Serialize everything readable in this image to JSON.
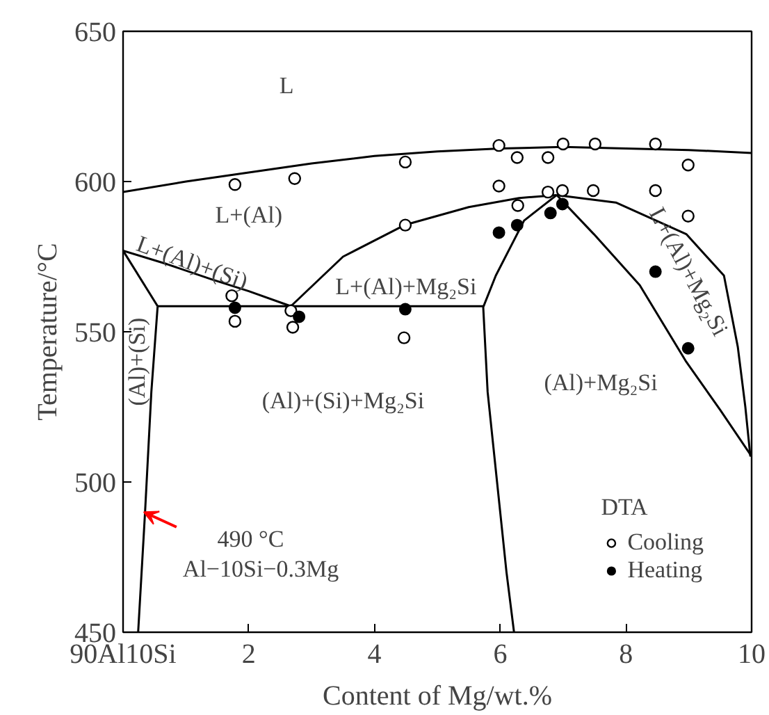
{
  "chart_data": {
    "type": "line",
    "xlabel": "Content of Mg/wt.%",
    "ylabel": "Temperature/°C",
    "xlim": [
      0,
      10
    ],
    "ylim": [
      450,
      650
    ],
    "xticks": [
      {
        "value": 0,
        "label": "90Al10Si"
      },
      2,
      4,
      6,
      8,
      10
    ],
    "yticks": [
      450,
      500,
      550,
      600,
      650
    ],
    "grid": false,
    "legend": "bottom right",
    "legend_title": "DTA",
    "line_style": "solid",
    "series": [
      {
        "color": "#000000",
        "x": [
          0,
          1,
          2,
          3,
          4,
          5,
          6,
          7,
          8,
          9,
          10
        ],
        "values": [
          596.5,
          600,
          603,
          606,
          608.5,
          610,
          611,
          611.5,
          611,
          610.5,
          609.5
        ]
      },
      {
        "type": "line",
        "color": "#000000",
        "x": [
          0,
          0.7,
          1.4,
          2.0,
          2.67
        ],
        "values": [
          577,
          572.5,
          567.5,
          563.5,
          558.5
        ]
      },
      {
        "type": "line",
        "color": "#000000",
        "x": [
          0,
          0.55
        ],
        "values": [
          577,
          558.5
        ]
      },
      {
        "type": "line",
        "color": "#000000",
        "x": [
          0.55,
          0.45,
          0.35,
          0.24
        ],
        "values": [
          558.5,
          530,
          490,
          450
        ]
      },
      {
        "type": "line",
        "color": "#000000",
        "x": [
          0.55,
          5.73
        ],
        "values": [
          558.5,
          558.5
        ]
      },
      {
        "type": "line",
        "color": "#000000",
        "x": [
          2.67,
          3.5,
          4.49,
          5.5,
          6.3,
          6.9
        ],
        "values": [
          558.5,
          575,
          585.6,
          591.5,
          594.5,
          595.5
        ]
      },
      {
        "type": "line",
        "color": "#000000",
        "x": [
          6.9,
          7.84,
          8.96,
          9.56,
          9.78,
          9.9,
          9.98
        ],
        "values": [
          595.5,
          593,
          582.5,
          568.7,
          545,
          525,
          508.5
        ]
      },
      {
        "type": "line",
        "color": "#000000",
        "x": [
          6.9,
          7.49,
          8.22,
          8.96,
          9.5,
          10
        ],
        "values": [
          595.5,
          582.5,
          565.5,
          540,
          524,
          508.5
        ]
      },
      {
        "type": "line",
        "color": "#000000",
        "x": [
          6.9,
          6.38,
          5.93,
          5.73,
          5.8,
          5.95,
          6.1,
          6.22
        ],
        "values": [
          595.5,
          587,
          568.7,
          558.2,
          530,
          500,
          470,
          450
        ]
      },
      {
        "type": "scatter",
        "name": "Cooling",
        "color": "#000000",
        "marker": "circle_open",
        "x": [
          1.78,
          2.73,
          4.49,
          5.98,
          6.27,
          6.76,
          7.0,
          7.51,
          8.47,
          8.99,
          5.98,
          6.76,
          6.99,
          7.48,
          8.47,
          6.28,
          8.99,
          4.49,
          1.73,
          1.78,
          2.67,
          2.7,
          4.47
        ],
        "values": [
          599,
          601,
          606.5,
          612,
          608,
          608,
          612.5,
          612.5,
          612.5,
          605.5,
          598.5,
          596.5,
          597,
          597,
          597,
          592,
          588.5,
          585.5,
          562,
          553.5,
          557,
          551.5,
          548
        ]
      },
      {
        "type": "scatter",
        "name": "Heating",
        "color": "#000000",
        "marker": "circle",
        "x": [
          1.78,
          2.8,
          4.49,
          5.98,
          6.27,
          6.8,
          6.99,
          8.47,
          8.99
        ],
        "values": [
          558,
          555,
          557.5,
          583,
          585.5,
          589.5,
          592.5,
          570,
          544.5
        ]
      }
    ],
    "annotations": [
      "L",
      "L+(Al)",
      "L+(Al)+(Si)",
      "L+(Al)+Mg₂Si",
      "(Al)+(Si)",
      "(Al)+(Si)+Mg₂Si",
      "(Al)+Mg₂Si",
      "L+(Al)+Mg₂Si",
      "490 °C",
      {
        "text": "Al−10Si−0.3Mg",
        "x": 0.33,
        "y": 490
      }
    ]
  }
}
